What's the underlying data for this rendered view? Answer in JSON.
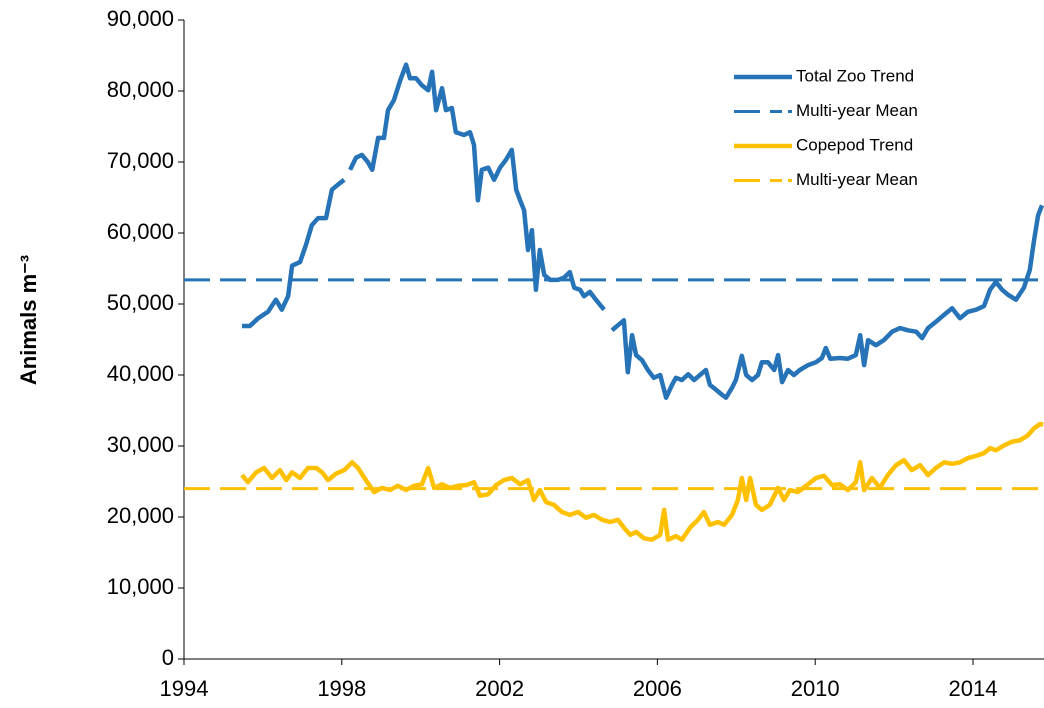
{
  "chart_data": {
    "type": "line",
    "y_label": "Animals m⁻³",
    "xlim": [
      1994,
      2015.8
    ],
    "xticks": [
      1994,
      1998,
      2002,
      2006,
      2010,
      2014
    ],
    "ylim": [
      0,
      90000
    ],
    "yticks": [
      0,
      {
        "value": 10000,
        "label": "10,000"
      },
      {
        "value": 20000,
        "label": "20,000"
      },
      {
        "value": 30000,
        "label": "30,000"
      },
      {
        "value": 40000,
        "label": "40,000"
      },
      {
        "value": 50000,
        "label": "50,000"
      },
      {
        "value": 60000,
        "label": "60,000"
      },
      {
        "value": 70000,
        "label": "70,000"
      },
      {
        "value": 80000,
        "label": "80,000"
      },
      {
        "value": 90000,
        "label": "90,000"
      }
    ],
    "grid": false,
    "legend": "top-right",
    "series": [
      {
        "name": "Total Zoo Trend",
        "color": "#2673b8",
        "x": [
          1995.47,
          1995.67,
          1995.88,
          1996.13,
          1996.33,
          1996.48,
          1996.64,
          1996.74,
          1996.94,
          1997.09,
          1997.24,
          1997.4,
          1997.6,
          1997.75,
          1997.9,
          1998.06,
          1998.13,
          1998.21,
          1998.36,
          1998.51,
          1998.66,
          1998.77,
          1998.92,
          1999.07,
          1999.17,
          1999.32,
          1999.48,
          1999.63,
          1999.73,
          1999.88,
          2000.03,
          2000.19,
          2000.29,
          2000.39,
          2000.54,
          2000.64,
          2000.79,
          2000.89,
          2001.1,
          2001.25,
          2001.35,
          2001.45,
          2001.55,
          2001.71,
          2001.86,
          2002.01,
          2002.16,
          2002.31,
          2002.42,
          2002.52,
          2002.62,
          2002.72,
          2002.82,
          2002.92,
          2003.02,
          2003.13,
          2003.28,
          2003.48,
          2003.63,
          2003.78,
          2003.89,
          2004.04,
          2004.14,
          2004.29,
          2004.44,
          2004.65,
          2004.75,
          2004.85,
          2005,
          2005.15,
          2005.25,
          2005.36,
          2005.46,
          2005.61,
          2005.76,
          2005.91,
          2006.07,
          2006.22,
          2006.37,
          2006.47,
          2006.62,
          2006.78,
          2006.93,
          2007.08,
          2007.23,
          2007.33,
          2007.49,
          2007.64,
          2007.74,
          2007.89,
          2007.99,
          2008.14,
          2008.25,
          2008.4,
          2008.55,
          2008.65,
          2008.8,
          2008.96,
          2009.06,
          2009.16,
          2009.31,
          2009.46,
          2009.61,
          2009.82,
          2010.02,
          2010.17,
          2010.27,
          2010.38,
          2010.63,
          2010.83,
          2011.03,
          2011.14,
          2011.24,
          2011.34,
          2011.54,
          2011.74,
          2011.95,
          2012.15,
          2012.35,
          2012.56,
          2012.71,
          2012.86,
          2013.06,
          2013.27,
          2013.47,
          2013.67,
          2013.87,
          2014.08,
          2014.28,
          2014.43,
          2014.58,
          2014.74,
          2014.89,
          2015.09,
          2015.29,
          2015.44,
          2015.55,
          2015.65,
          2015.75
        ],
        "values": [
          46900,
          46900,
          48000,
          48900,
          50600,
          49200,
          51100,
          55400,
          55900,
          58300,
          61100,
          62100,
          62100,
          66100,
          66800,
          67500,
          null,
          68900,
          70600,
          71000,
          70000,
          68900,
          73400,
          73400,
          77300,
          78700,
          81500,
          83700,
          81800,
          81800,
          80800,
          80100,
          82700,
          77300,
          80400,
          77300,
          77600,
          74200,
          73800,
          74200,
          72400,
          64600,
          68900,
          69200,
          67500,
          69200,
          70300,
          71700,
          66100,
          64600,
          63200,
          57600,
          60400,
          52000,
          57600,
          54100,
          53400,
          53400,
          53700,
          54500,
          52300,
          52000,
          51100,
          51700,
          50600,
          49200,
          null,
          46300,
          47000,
          47700,
          40400,
          45600,
          42800,
          42100,
          40700,
          39600,
          40000,
          36800,
          38600,
          39600,
          39300,
          40100,
          39300,
          40000,
          40700,
          38600,
          37900,
          37200,
          36800,
          38200,
          39300,
          42700,
          40000,
          39300,
          40000,
          41800,
          41800,
          40700,
          42800,
          39000,
          40700,
          40000,
          40700,
          41400,
          41800,
          42400,
          43800,
          42300,
          42400,
          42300,
          42800,
          45600,
          41400,
          44900,
          44200,
          44900,
          46100,
          46600,
          46300,
          46100,
          45200,
          46600,
          47500,
          48500,
          49400,
          48000,
          48900,
          49200,
          49700,
          52000,
          53100,
          52000,
          51300,
          50600,
          52300,
          54800,
          59000,
          62500,
          63900
        ]
      },
      {
        "name": "Multi-year Mean",
        "color": "#2673b8",
        "dash": true,
        "value": 53400
      },
      {
        "name": "Copepod Trend",
        "color": "#ffc000",
        "x": [
          1995.47,
          1995.62,
          1995.83,
          1996.03,
          1996.23,
          1996.43,
          1996.59,
          1996.74,
          1996.94,
          1997.14,
          1997.35,
          1997.5,
          1997.65,
          1997.85,
          1998.06,
          1998.26,
          1998.41,
          1998.61,
          1998.82,
          1999.02,
          1999.22,
          1999.42,
          1999.63,
          1999.83,
          2000.03,
          2000.19,
          2000.34,
          2000.54,
          2000.74,
          2000.95,
          2001.15,
          2001.35,
          2001.5,
          2001.71,
          2001.91,
          2002.11,
          2002.31,
          2002.52,
          2002.72,
          2002.87,
          2003.02,
          2003.18,
          2003.38,
          2003.58,
          2003.78,
          2003.99,
          2004.19,
          2004.39,
          2004.6,
          2004.8,
          2005,
          2005.15,
          2005.31,
          2005.46,
          2005.66,
          2005.86,
          2006.07,
          2006.17,
          2006.27,
          2006.47,
          2006.62,
          2006.83,
          2007.03,
          2007.18,
          2007.33,
          2007.54,
          2007.69,
          2007.89,
          2008.04,
          2008.14,
          2008.25,
          2008.35,
          2008.5,
          2008.65,
          2008.85,
          2009.06,
          2009.21,
          2009.36,
          2009.56,
          2009.77,
          2010.02,
          2010.22,
          2010.43,
          2010.63,
          2010.83,
          2011.03,
          2011.14,
          2011.24,
          2011.44,
          2011.64,
          2011.84,
          2012.05,
          2012.25,
          2012.45,
          2012.66,
          2012.86,
          2013.06,
          2013.27,
          2013.47,
          2013.67,
          2013.87,
          2014.08,
          2014.28,
          2014.43,
          2014.58,
          2014.79,
          2014.99,
          2015.19,
          2015.39,
          2015.55,
          2015.7,
          2015.78
        ],
        "values": [
          25900,
          24900,
          26300,
          26900,
          25500,
          26600,
          25200,
          26300,
          25500,
          26900,
          26900,
          26300,
          25200,
          26100,
          26600,
          27700,
          26900,
          25200,
          23500,
          24100,
          23800,
          24400,
          23800,
          24400,
          24600,
          26900,
          24100,
          24600,
          24100,
          24400,
          24500,
          24900,
          23000,
          23200,
          24500,
          25200,
          25500,
          24600,
          25200,
          22400,
          23800,
          22100,
          21700,
          20700,
          20300,
          20700,
          19900,
          20300,
          19600,
          19300,
          19600,
          18500,
          17500,
          17900,
          17000,
          16800,
          17500,
          21000,
          16800,
          17300,
          16800,
          18500,
          19600,
          20700,
          18900,
          19300,
          18900,
          20300,
          22400,
          25500,
          22400,
          25500,
          21700,
          21000,
          21700,
          24100,
          22400,
          23800,
          23500,
          24400,
          25500,
          25800,
          24500,
          24600,
          23800,
          24900,
          27700,
          23800,
          25500,
          24100,
          25900,
          27300,
          28000,
          26600,
          27300,
          25900,
          26900,
          27700,
          27500,
          27700,
          28300,
          28600,
          29000,
          29700,
          29400,
          30100,
          30600,
          30800,
          31500,
          32500,
          33100,
          33000
        ]
      },
      {
        "name": "Multi-year Mean",
        "color": "#ffc000",
        "dash": true,
        "value": 24000
      }
    ]
  }
}
